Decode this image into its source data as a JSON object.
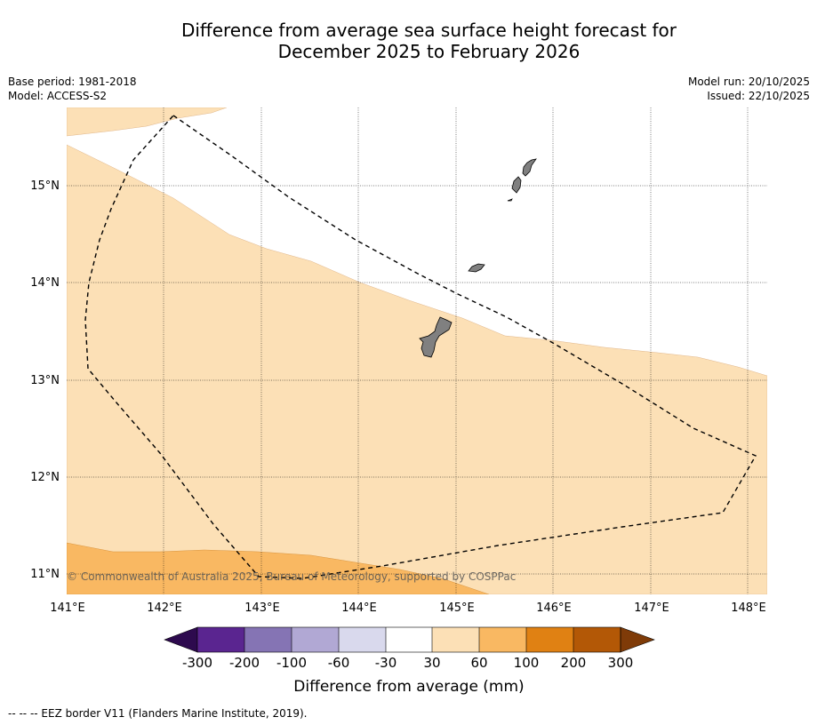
{
  "title_line1": "Difference from average sea surface height forecast for",
  "title_line2": "December 2025 to February 2026",
  "base_period": "Base period: 1981-2018",
  "model": "Model: ACCESS-S2",
  "model_run": "Model run: 20/10/2025",
  "issued": "Issued: 22/10/2025",
  "copyright": "© Commonwealth of Australia 2025, Bureau of Meteorology, supported by COSPPac",
  "map": {
    "lon_ticks": [
      "141°E",
      "142°E",
      "143°E",
      "144°E",
      "145°E",
      "146°E",
      "147°E",
      "148°E"
    ],
    "lat_ticks": [
      "15°N",
      "14°N",
      "13°N",
      "12°N",
      "11°N"
    ],
    "lon_range": [
      141.0,
      148.2
    ],
    "lat_range": [
      10.8,
      15.8
    ],
    "colors": {
      "band_30_60": "#fce0b6",
      "band_60_100": "#f9b862",
      "land": "#808080",
      "eez": "#000000"
    }
  },
  "colorbar": {
    "label": "Difference from average (mm)",
    "tick_labels": [
      "-300",
      "-200",
      "-100",
      "-60",
      "-30",
      "30",
      "60",
      "100",
      "200",
      "300"
    ],
    "colors": [
      "#2d0a4e",
      "#5a2590",
      "#8574b4",
      "#b1a8d4",
      "#d9d9ed",
      "#ffffff",
      "#fce0b6",
      "#f9b862",
      "#e08113",
      "#b35806",
      "#7f3b08"
    ]
  },
  "footnote": "--  --  -- EEZ border V11 (Flanders Marine Institute, 2019)."
}
